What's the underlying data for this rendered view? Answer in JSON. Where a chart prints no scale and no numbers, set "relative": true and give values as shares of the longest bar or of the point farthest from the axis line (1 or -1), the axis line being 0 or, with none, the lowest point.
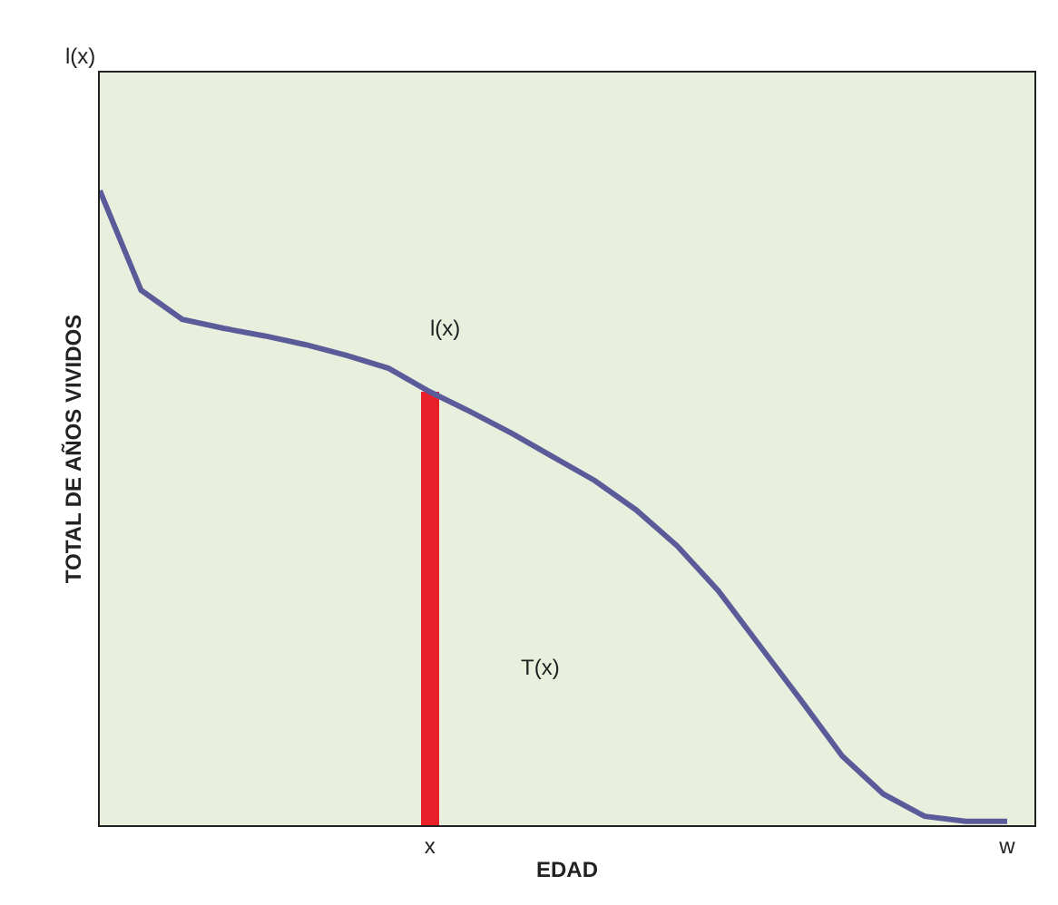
{
  "chart_data": {
    "type": "line",
    "relative": true,
    "xlabel": "EDAD",
    "ylabel": "TOTAL DE AÑOS VIVIDOS",
    "categories": [
      null,
      null,
      null,
      null,
      null,
      null,
      null,
      null,
      "x",
      null,
      null,
      null,
      null,
      null,
      null,
      null,
      null,
      null,
      null,
      null,
      null,
      null,
      "w"
    ],
    "annotations": [
      "l(x)",
      "l(x)",
      "T(x)"
    ],
    "series": [
      {
        "color": "#5b5b9a",
        "values": [
          1.0,
          0.843,
          0.797,
          0.783,
          0.771,
          0.757,
          0.74,
          0.72,
          0.683,
          0.651,
          0.617,
          0.58,
          0.543,
          0.497,
          0.44,
          0.369,
          0.283,
          0.197,
          0.109,
          0.049,
          0.014,
          0.006,
          0.006
        ]
      },
      {
        "type": "bar",
        "color": "#e8202a",
        "values": [
          null,
          null,
          null,
          null,
          null,
          null,
          null,
          null,
          0.683,
          null,
          null,
          null,
          null,
          null,
          null,
          null,
          null,
          null,
          null,
          null,
          null,
          null,
          null
        ]
      }
    ]
  }
}
